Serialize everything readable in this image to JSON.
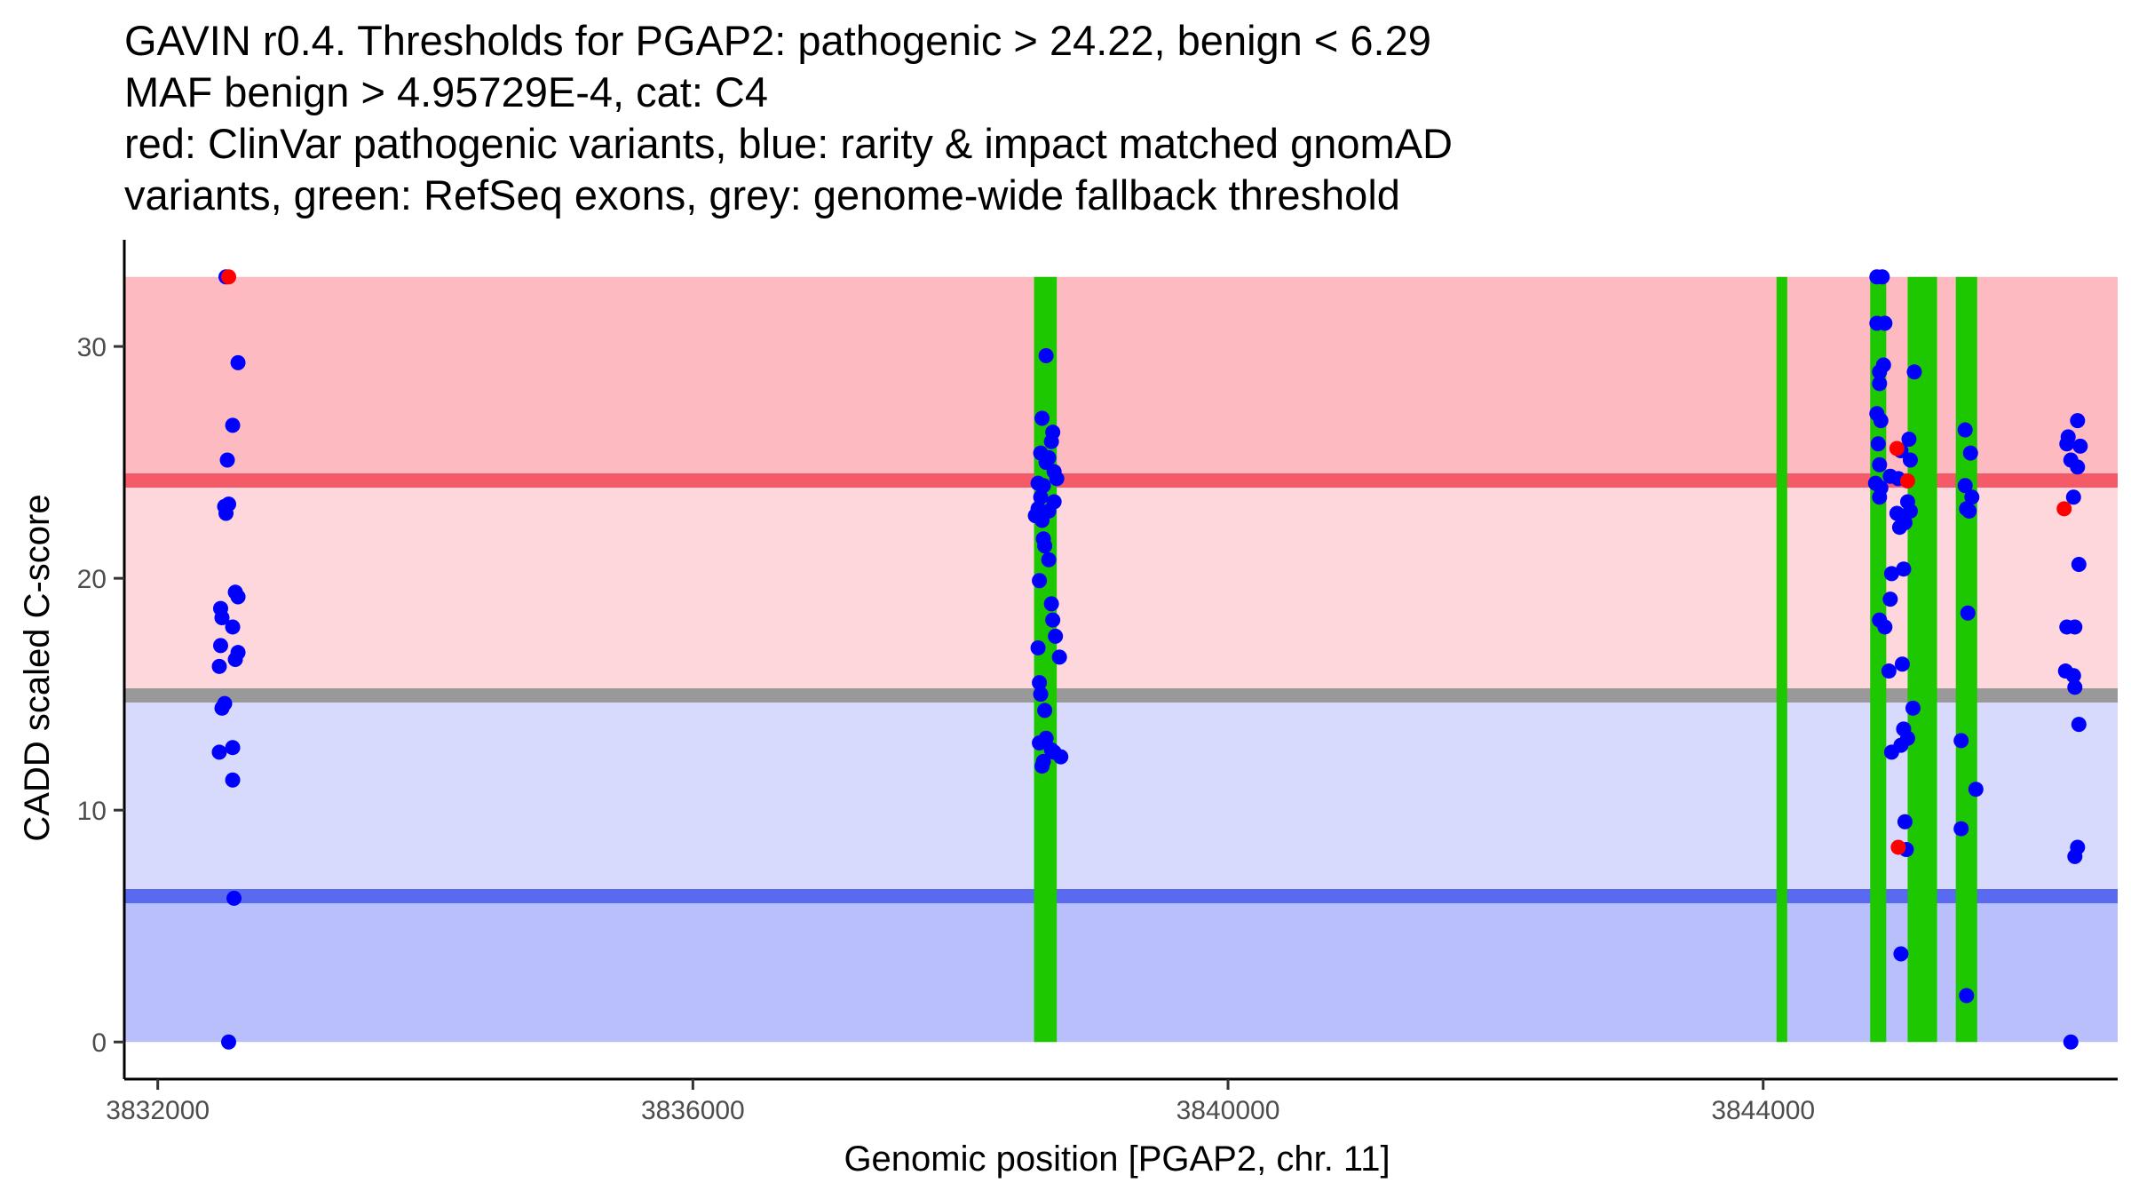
{
  "chart_data": {
    "type": "scatter",
    "title": "GAVIN r0.4. Thresholds for PGAP2: pathogenic > 24.22, benign < 6.29",
    "title_lines": [
      "GAVIN r0.4. Thresholds for PGAP2: pathogenic > 24.22, benign < 6.29",
      "MAF benign > 4.95729E-4, cat: C4",
      "red: ClinVar pathogenic variants, blue: rarity & impact matched gnomAD",
      "variants, green: RefSeq exons, grey: genome-wide fallback threshold"
    ],
    "xlabel": "Genomic position [PGAP2, chr. 11]",
    "ylabel": "CADD scaled C-score",
    "xlim": [
      3831750,
      3846650
    ],
    "ylim": [
      -1.6,
      34.6
    ],
    "x_ticks": [
      3832000,
      3836000,
      3840000,
      3844000
    ],
    "x_tick_labels": [
      "3832000",
      "3836000",
      "3840000",
      "3844000"
    ],
    "y_ticks": [
      0,
      10,
      20,
      30
    ],
    "y_tick_labels": [
      "0",
      "10",
      "20",
      "30"
    ],
    "thresholds": {
      "pathogenic": 24.22,
      "benign": 6.29,
      "fallback": 14.95,
      "top": 33
    },
    "colors": {
      "patho_zone": "#fdbbc1",
      "mid_upper": "#fed7dc",
      "mid_lower": "#d7dafc",
      "benign_zone": "#b9bffa",
      "patho_line": "#f55a69",
      "benign_line": "#5a6af0",
      "fallback_line": "#999999",
      "exon": "#1ec800",
      "gnomad": "#0000ff",
      "clinvar": "#ff0000"
    },
    "exons": [
      [
        3838550,
        3838720
      ],
      [
        3844100,
        3844180
      ],
      [
        3844800,
        3844920
      ],
      [
        3845080,
        3845300
      ],
      [
        3845440,
        3845600
      ]
    ],
    "series": [
      {
        "name": "gnomAD",
        "points": [
          [
            3832510,
            33
          ],
          [
            3832600,
            29.3
          ],
          [
            3832560,
            26.6
          ],
          [
            3832520,
            25.1
          ],
          [
            3832500,
            23.1
          ],
          [
            3832530,
            23.2
          ],
          [
            3832510,
            22.8
          ],
          [
            3832580,
            19.4
          ],
          [
            3832600,
            19.2
          ],
          [
            3832470,
            18.7
          ],
          [
            3832480,
            18.3
          ],
          [
            3832560,
            17.9
          ],
          [
            3832470,
            17.1
          ],
          [
            3832600,
            16.8
          ],
          [
            3832580,
            16.5
          ],
          [
            3832460,
            16.2
          ],
          [
            3832500,
            14.6
          ],
          [
            3832480,
            14.4
          ],
          [
            3832560,
            12.7
          ],
          [
            3832460,
            12.5
          ],
          [
            3832560,
            11.3
          ],
          [
            3832570,
            6.2
          ],
          [
            3832530,
            0
          ],
          [
            3838640,
            29.6
          ],
          [
            3838610,
            26.9
          ],
          [
            3838690,
            26.3
          ],
          [
            3838680,
            25.9
          ],
          [
            3838600,
            25.4
          ],
          [
            3838660,
            25.2
          ],
          [
            3838640,
            25.0
          ],
          [
            3838700,
            24.6
          ],
          [
            3838720,
            24.3
          ],
          [
            3838580,
            24.1
          ],
          [
            3838620,
            24.0
          ],
          [
            3838600,
            23.5
          ],
          [
            3838700,
            23.3
          ],
          [
            3838580,
            23.0
          ],
          [
            3838660,
            22.9
          ],
          [
            3838560,
            22.7
          ],
          [
            3838610,
            22.5
          ],
          [
            3838620,
            21.7
          ],
          [
            3838630,
            21.4
          ],
          [
            3838660,
            20.8
          ],
          [
            3838590,
            19.9
          ],
          [
            3838680,
            18.9
          ],
          [
            3838690,
            18.2
          ],
          [
            3838710,
            17.5
          ],
          [
            3838580,
            17.0
          ],
          [
            3838740,
            16.6
          ],
          [
            3838590,
            15.5
          ],
          [
            3838600,
            15.0
          ],
          [
            3838630,
            14.3
          ],
          [
            3838590,
            12.9
          ],
          [
            3838640,
            13.1
          ],
          [
            3838680,
            12.6
          ],
          [
            3838700,
            12.5
          ],
          [
            3838750,
            12.3
          ],
          [
            3838620,
            12.1
          ],
          [
            3838610,
            11.9
          ],
          [
            3844850,
            33
          ],
          [
            3844890,
            33
          ],
          [
            3844910,
            31.0
          ],
          [
            3844850,
            31.0
          ],
          [
            3844900,
            29.2
          ],
          [
            3844870,
            28.9
          ],
          [
            3845130,
            28.9
          ],
          [
            3844870,
            28.4
          ],
          [
            3844850,
            27.1
          ],
          [
            3844880,
            26.8
          ],
          [
            3845090,
            26.0
          ],
          [
            3844860,
            25.8
          ],
          [
            3845030,
            25.5
          ],
          [
            3845100,
            25.1
          ],
          [
            3844870,
            24.9
          ],
          [
            3844950,
            24.4
          ],
          [
            3845010,
            24.3
          ],
          [
            3844840,
            24.1
          ],
          [
            3844880,
            23.9
          ],
          [
            3844870,
            23.5
          ],
          [
            3845080,
            23.3
          ],
          [
            3845100,
            22.9
          ],
          [
            3845000,
            22.8
          ],
          [
            3845060,
            22.4
          ],
          [
            3845020,
            22.2
          ],
          [
            3845050,
            20.4
          ],
          [
            3844960,
            20.2
          ],
          [
            3844950,
            19.1
          ],
          [
            3844870,
            18.2
          ],
          [
            3844910,
            17.9
          ],
          [
            3845040,
            16.3
          ],
          [
            3844940,
            16.0
          ],
          [
            3845120,
            14.4
          ],
          [
            3845050,
            13.5
          ],
          [
            3845080,
            13.1
          ],
          [
            3844960,
            12.5
          ],
          [
            3845030,
            12.8
          ],
          [
            3845060,
            9.5
          ],
          [
            3845070,
            8.3
          ],
          [
            3845030,
            3.8
          ],
          [
            3845510,
            26.4
          ],
          [
            3845550,
            25.4
          ],
          [
            3845510,
            24.0
          ],
          [
            3845560,
            23.5
          ],
          [
            3845520,
            23.0
          ],
          [
            3845540,
            22.9
          ],
          [
            3845530,
            18.5
          ],
          [
            3845480,
            13.0
          ],
          [
            3845590,
            10.9
          ],
          [
            3845480,
            9.2
          ],
          [
            3845520,
            2.0
          ],
          [
            3846280,
            26.1
          ],
          [
            3846350,
            26.8
          ],
          [
            3846270,
            25.8
          ],
          [
            3846370,
            25.7
          ],
          [
            3846300,
            25.1
          ],
          [
            3846350,
            24.8
          ],
          [
            3846320,
            23.5
          ],
          [
            3846360,
            20.6
          ],
          [
            3846270,
            17.9
          ],
          [
            3846330,
            17.9
          ],
          [
            3846260,
            16.0
          ],
          [
            3846320,
            15.8
          ],
          [
            3846330,
            15.3
          ],
          [
            3846360,
            13.7
          ],
          [
            3846350,
            8.4
          ],
          [
            3846330,
            8.0
          ],
          [
            3846300,
            0
          ]
        ]
      },
      {
        "name": "ClinVar",
        "points": [
          [
            3832530,
            33
          ],
          [
            3845000,
            25.6
          ],
          [
            3845080,
            24.2
          ],
          [
            3845010,
            8.4
          ],
          [
            3846250,
            23.0
          ]
        ]
      }
    ]
  }
}
